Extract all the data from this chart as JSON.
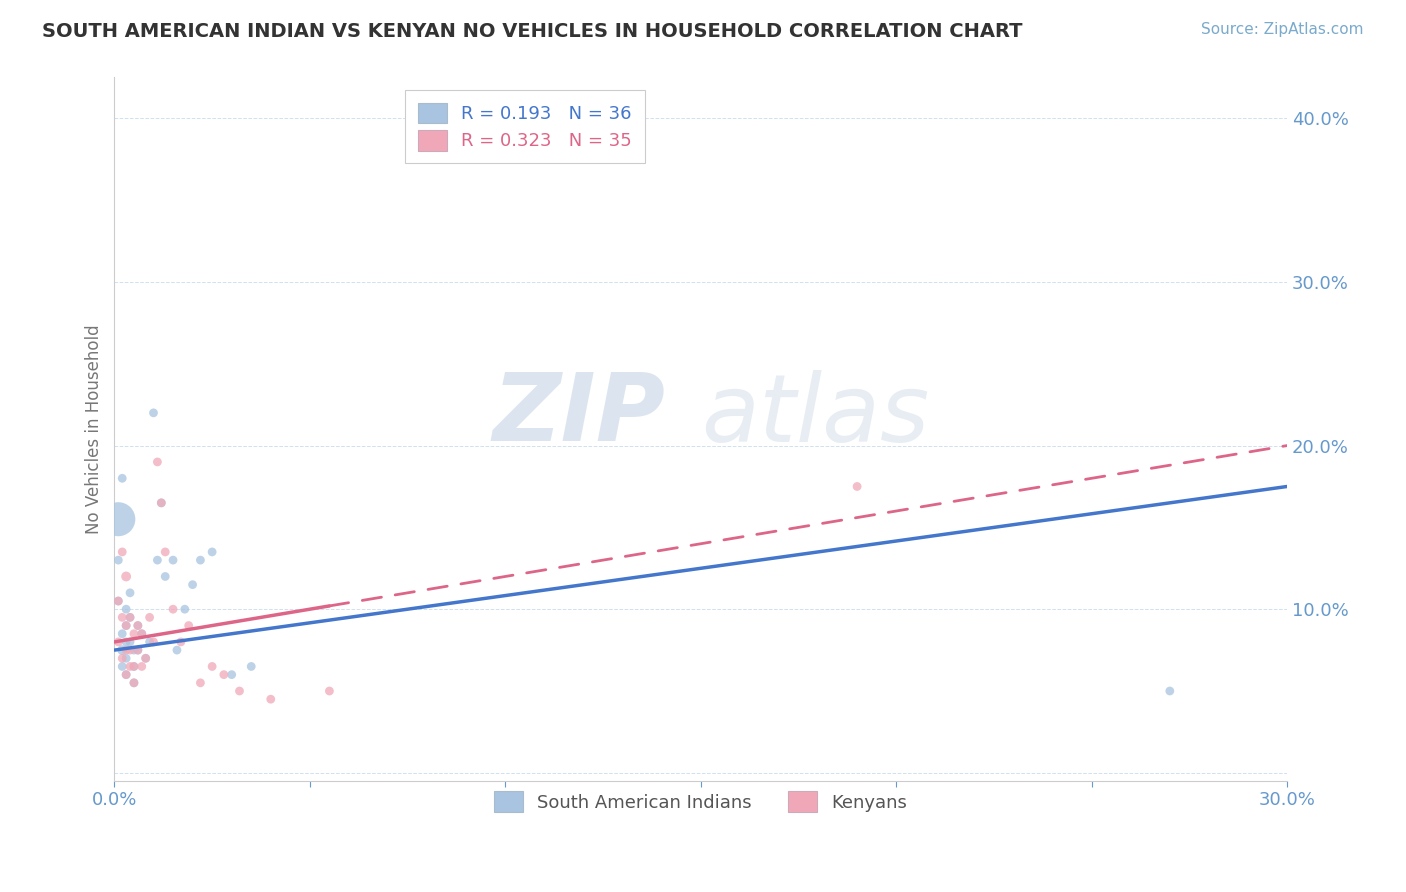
{
  "title": "SOUTH AMERICAN INDIAN VS KENYAN NO VEHICLES IN HOUSEHOLD CORRELATION CHART",
  "source_text": "Source: ZipAtlas.com",
  "ylabel": "No Vehicles in Household",
  "legend_labels": [
    "South American Indians",
    "Kenyans"
  ],
  "blue_R": "0.193",
  "blue_N": "36",
  "pink_R": "0.323",
  "pink_N": "35",
  "xlim": [
    0.0,
    0.3
  ],
  "ylim": [
    -0.005,
    0.425
  ],
  "ytick_positions": [
    0.0,
    0.1,
    0.2,
    0.3,
    0.4
  ],
  "ytick_labels": [
    "",
    "10.0%",
    "20.0%",
    "30.0%",
    "40.0%"
  ],
  "watermark_zip": "ZIP",
  "watermark_atlas": "atlas",
  "blue_color": "#a8c4e0",
  "pink_color": "#f0a8b8",
  "blue_line_color": "#4477cc",
  "pink_line_color": "#dd6688",
  "background_color": "#ffffff",
  "blue_scatter_x": [
    0.001,
    0.001,
    0.001,
    0.002,
    0.002,
    0.002,
    0.002,
    0.003,
    0.003,
    0.003,
    0.003,
    0.003,
    0.004,
    0.004,
    0.004,
    0.005,
    0.005,
    0.005,
    0.006,
    0.006,
    0.007,
    0.008,
    0.009,
    0.01,
    0.011,
    0.012,
    0.013,
    0.015,
    0.016,
    0.018,
    0.02,
    0.022,
    0.025,
    0.03,
    0.035,
    0.27
  ],
  "blue_scatter_y": [
    0.155,
    0.13,
    0.105,
    0.085,
    0.075,
    0.065,
    0.18,
    0.1,
    0.09,
    0.08,
    0.07,
    0.06,
    0.11,
    0.095,
    0.08,
    0.075,
    0.065,
    0.055,
    0.09,
    0.075,
    0.085,
    0.07,
    0.08,
    0.22,
    0.13,
    0.165,
    0.12,
    0.13,
    0.075,
    0.1,
    0.115,
    0.13,
    0.135,
    0.06,
    0.065,
    0.05
  ],
  "blue_scatter_size": [
    600,
    40,
    40,
    40,
    50,
    40,
    40,
    40,
    40,
    40,
    40,
    40,
    40,
    40,
    40,
    40,
    40,
    40,
    40,
    40,
    40,
    40,
    40,
    40,
    40,
    40,
    40,
    40,
    40,
    40,
    40,
    40,
    40,
    40,
    40,
    40
  ],
  "pink_scatter_x": [
    0.001,
    0.001,
    0.002,
    0.002,
    0.002,
    0.003,
    0.003,
    0.003,
    0.003,
    0.004,
    0.004,
    0.004,
    0.005,
    0.005,
    0.005,
    0.006,
    0.006,
    0.007,
    0.007,
    0.008,
    0.009,
    0.01,
    0.011,
    0.012,
    0.013,
    0.015,
    0.017,
    0.019,
    0.022,
    0.025,
    0.028,
    0.032,
    0.04,
    0.055,
    0.19
  ],
  "pink_scatter_y": [
    0.105,
    0.08,
    0.135,
    0.095,
    0.07,
    0.12,
    0.09,
    0.075,
    0.06,
    0.095,
    0.075,
    0.065,
    0.085,
    0.065,
    0.055,
    0.09,
    0.075,
    0.085,
    0.065,
    0.07,
    0.095,
    0.08,
    0.19,
    0.165,
    0.135,
    0.1,
    0.08,
    0.09,
    0.055,
    0.065,
    0.06,
    0.05,
    0.045,
    0.05,
    0.175
  ],
  "pink_scatter_size": [
    40,
    40,
    40,
    40,
    40,
    50,
    40,
    40,
    40,
    40,
    40,
    40,
    40,
    40,
    40,
    40,
    40,
    40,
    40,
    40,
    40,
    40,
    40,
    40,
    40,
    40,
    40,
    40,
    40,
    40,
    40,
    40,
    40,
    40,
    40
  ],
  "blue_line_x": [
    0.0,
    0.3
  ],
  "blue_line_y": [
    0.075,
    0.175
  ],
  "pink_line_x": [
    0.0,
    0.3
  ],
  "pink_line_y": [
    0.08,
    0.2
  ],
  "pink_line_solid_end": 0.055
}
